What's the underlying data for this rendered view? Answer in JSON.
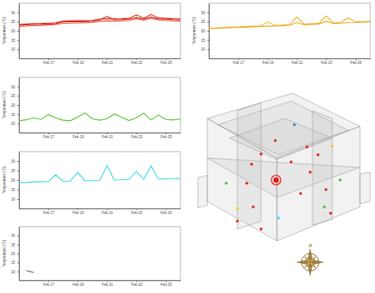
{
  "chart_data": [
    {
      "type": "line",
      "ylabel": "Temperature (°C)",
      "x": [
        15,
        15.5,
        16,
        16.5,
        17,
        17.5,
        18,
        18.5,
        19,
        19.5,
        20,
        20.5,
        21,
        21.5,
        22,
        22.5,
        23,
        23.5,
        24,
        24.5,
        25,
        25.5,
        26
      ],
      "xlim": [
        15,
        26
      ],
      "xticks": [
        {
          "value": 17,
          "label": "Feb 17"
        },
        {
          "value": 19,
          "label": "Feb 19"
        },
        {
          "value": 21,
          "label": "Feb 21"
        },
        {
          "value": 23,
          "label": "Feb 23"
        },
        {
          "value": 25,
          "label": "Feb 25"
        }
      ],
      "ylim": [
        5,
        35
      ],
      "yticks": [
        10,
        15,
        20,
        25,
        30
      ],
      "grid": false,
      "series": [
        {
          "color": "#e8301f",
          "values": [
            23.5,
            23.7,
            23.9,
            24.0,
            24.2,
            24.4,
            25.3,
            25.4,
            25.5,
            25.5,
            25.7,
            26.4,
            26.6,
            26.5,
            26.6,
            26.8,
            28.6,
            26.9,
            28.8,
            27.0,
            26.8,
            26.6,
            26.5
          ]
        },
        {
          "color": "#c81b10",
          "values": [
            23.0,
            23.2,
            23.4,
            23.5,
            23.7,
            23.9,
            24.8,
            24.9,
            25.0,
            25.0,
            25.2,
            25.9,
            27.8,
            26.0,
            26.1,
            26.3,
            27.2,
            26.4,
            27.5,
            26.5,
            26.3,
            26.1,
            26.0
          ]
        },
        {
          "color": "#f04a3a",
          "values": [
            22.4,
            22.6,
            22.8,
            22.9,
            23.1,
            23.3,
            24.1,
            24.2,
            24.3,
            24.3,
            24.5,
            25.2,
            25.4,
            25.3,
            25.4,
            25.6,
            26.6,
            25.7,
            26.9,
            25.8,
            25.6,
            25.4,
            25.3
          ]
        }
      ]
    },
    {
      "type": "line",
      "ylabel": "Temperature (°C)",
      "x": [
        15,
        15.5,
        16,
        16.5,
        17,
        17.5,
        18,
        18.5,
        19,
        19.5,
        20,
        20.5,
        21,
        21.5,
        22,
        22.5,
        23,
        23.5,
        24,
        24.5,
        25,
        25.5,
        26
      ],
      "xlim": [
        15,
        26
      ],
      "xticks": [
        {
          "value": 17,
          "label": "Feb 17"
        },
        {
          "value": 19,
          "label": "Feb 19"
        },
        {
          "value": 21,
          "label": "Feb 21"
        },
        {
          "value": 23,
          "label": "Feb 23"
        },
        {
          "value": 25,
          "label": "Feb 25"
        }
      ],
      "ylim": [
        5,
        35
      ],
      "yticks": [
        10,
        15,
        20,
        25,
        30
      ],
      "grid": false,
      "series": [
        {
          "color": "#f2b01e",
          "values": [
            21.5,
            21.6,
            21.8,
            22.0,
            22.1,
            22.3,
            22.5,
            22.6,
            24.8,
            22.9,
            23.1,
            23.3,
            27.5,
            23.6,
            23.8,
            24.0,
            28.0,
            24.3,
            24.5,
            27.0,
            24.8,
            25.0,
            25.1
          ]
        },
        {
          "color": "#e6a817",
          "values": [
            21.2,
            21.3,
            21.5,
            21.7,
            21.8,
            22.0,
            22.2,
            22.3,
            22.5,
            22.6,
            22.8,
            23.0,
            24.5,
            23.3,
            23.5,
            23.7,
            25.2,
            24.0,
            24.2,
            24.4,
            24.5,
            24.7,
            24.8
          ]
        }
      ]
    },
    {
      "type": "line",
      "ylabel": "Temperature (°C)",
      "x": [
        15,
        15.5,
        16,
        16.5,
        17,
        17.5,
        18,
        18.5,
        19,
        19.5,
        20,
        20.5,
        21,
        21.5,
        22,
        22.5,
        23,
        23.5,
        24,
        24.5,
        25,
        25.5,
        26
      ],
      "xlim": [
        15,
        26
      ],
      "xticks": [
        {
          "value": 17,
          "label": "Feb 17"
        },
        {
          "value": 19,
          "label": "Feb 19"
        },
        {
          "value": 21,
          "label": "Feb 21"
        },
        {
          "value": 23,
          "label": "Feb 23"
        },
        {
          "value": 25,
          "label": "Feb 25"
        }
      ],
      "ylim": [
        5,
        35
      ],
      "yticks": [
        10,
        15,
        20,
        25,
        30
      ],
      "grid": false,
      "series": [
        {
          "color": "#4cc42a",
          "values": [
            11.5,
            12.0,
            13.0,
            12.2,
            14.8,
            13.0,
            11.8,
            11.5,
            13.5,
            15.8,
            12.5,
            11.8,
            12.6,
            15.2,
            13.4,
            11.6,
            13.0,
            15.6,
            11.9,
            14.6,
            12.2,
            11.9,
            12.4
          ]
        }
      ]
    },
    {
      "type": "line",
      "ylabel": "Temperature (°C)",
      "x": [
        15,
        15.5,
        16,
        16.5,
        17,
        17.5,
        18,
        18.5,
        19,
        19.5,
        20,
        20.5,
        21,
        21.5,
        22,
        22.5,
        23,
        23.5,
        24,
        24.5,
        25,
        25.5,
        26
      ],
      "xlim": [
        15,
        26
      ],
      "xticks": [
        {
          "value": 17,
          "label": "Feb 17"
        },
        {
          "value": 19,
          "label": "Feb 19"
        },
        {
          "value": 21,
          "label": "Feb 21"
        },
        {
          "value": 23,
          "label": "Feb 23"
        },
        {
          "value": 25,
          "label": "Feb 25"
        }
      ],
      "ylim": [
        5,
        35
      ],
      "yticks": [
        10,
        15,
        20,
        25,
        30
      ],
      "grid": false,
      "series": [
        {
          "color": "#33d6e6",
          "values": [
            18.6,
            18.7,
            19.0,
            19.1,
            19.2,
            22.8,
            19.4,
            19.5,
            24.0,
            19.6,
            19.7,
            19.8,
            27.6,
            20.0,
            20.1,
            20.3,
            24.6,
            20.4,
            27.4,
            20.5,
            20.6,
            20.7,
            20.8
          ]
        }
      ]
    },
    {
      "type": "line",
      "ylabel": "Temperature (°C)",
      "x": [
        15,
        15.5,
        16,
        16.5,
        17,
        17.5,
        18,
        18.5,
        19,
        19.5,
        20,
        20.5,
        21,
        21.5,
        22,
        22.5,
        23,
        23.5,
        24,
        24.5,
        25,
        25.5,
        26
      ],
      "xlim": [
        15,
        26
      ],
      "xticks": [
        {
          "value": 17,
          "label": "Feb 17"
        },
        {
          "value": 19,
          "label": "Feb 19"
        },
        {
          "value": 21,
          "label": "Feb 21"
        },
        {
          "value": 23,
          "label": "Feb 23"
        },
        {
          "value": 25,
          "label": "Feb 25"
        }
      ],
      "ylim": [
        5,
        35
      ],
      "yticks": [
        10,
        15,
        20,
        25,
        30
      ],
      "grid": false,
      "series": [
        {
          "color": "#555555",
          "values": [
            null,
            10.5,
            9.4,
            null,
            null,
            null,
            null,
            null,
            null,
            null,
            null,
            null,
            null,
            null,
            null,
            null,
            null,
            null,
            null,
            null,
            null,
            null,
            null
          ]
        }
      ]
    }
  ],
  "diagram": {
    "compass": "N",
    "sensors": [
      "#e41a1c",
      "#e41a1c",
      "#e41a1c",
      "#e41a1c",
      "#e41a1c",
      "#e41a1c",
      "#e41a1c",
      "#e41a1c",
      "#e41a1c",
      "#e41a1c",
      "#e41a1c",
      "#e41a1c",
      "#e41a1c",
      "#e41a1c",
      "#4daf4a",
      "#4daf4a",
      "#4daf4a",
      "#f2c418",
      "#f2c418",
      "#377eb8",
      "#33d6e6",
      "#e41a1c"
    ]
  }
}
